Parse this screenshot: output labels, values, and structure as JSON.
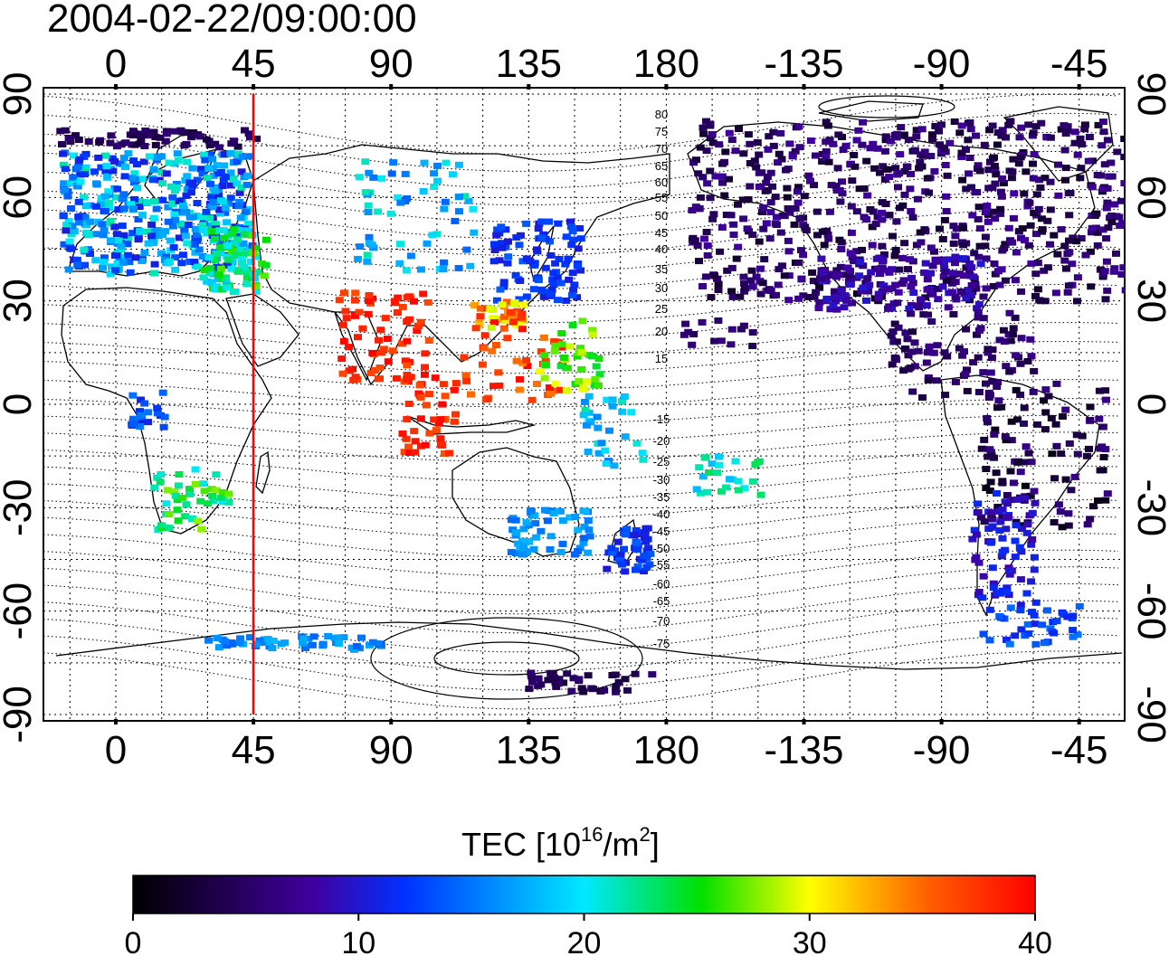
{
  "timestamp": "2004-02-22/09:00:00",
  "lon_tick_labels": [
    "0",
    "45",
    "90",
    "135",
    "180",
    "-135",
    "-90",
    "-45"
  ],
  "lat_tick_labels": [
    "90",
    "60",
    "30",
    "0",
    "-30",
    "-60",
    "-90"
  ],
  "contour_labels_north": [
    "80",
    "75",
    "70",
    "65",
    "60",
    "55",
    "50",
    "45",
    "40",
    "35",
    "30",
    "25",
    "20",
    "15"
  ],
  "contour_labels_south": [
    "-15",
    "-20",
    "-25",
    "-30",
    "-35",
    "-40",
    "-45",
    "-50",
    "-55",
    "-60",
    "-65",
    "-70",
    "-75"
  ],
  "colorbar": {
    "title_main": "TEC  [10",
    "title_exp": "16",
    "title_mid": "/m",
    "title_exp2": "2",
    "title_end": "]",
    "tick_labels": [
      "0",
      "10",
      "20",
      "30",
      "40"
    ],
    "min": 0,
    "max": 40,
    "stops": [
      "#000000",
      "#4000a0",
      "#0030ff",
      "#00e8ff",
      "#00e000",
      "#ffff00",
      "#ff0000"
    ]
  },
  "marker": {
    "label": "45",
    "color": "#ff0000"
  },
  "colors": {
    "land_outline": "#000000",
    "background": "#ffffff"
  }
}
